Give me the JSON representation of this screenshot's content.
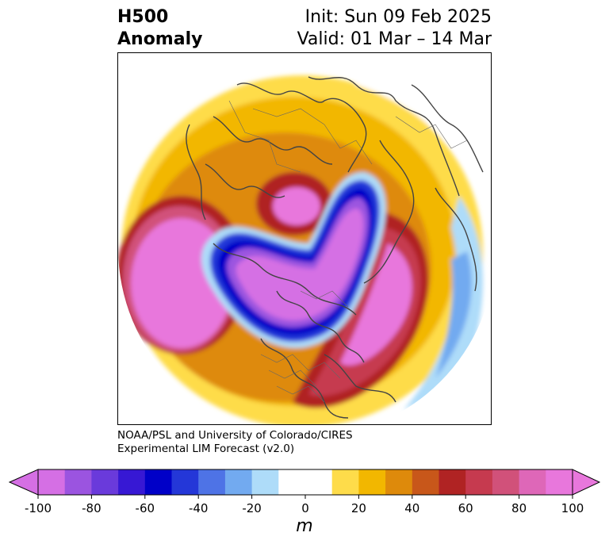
{
  "header": {
    "title_line1": "H500",
    "title_line2": "Anomaly",
    "init": "Init: Sun 09 Feb 2025",
    "valid": "Valid: 01 Mar – 14 Mar"
  },
  "credit": {
    "line1": "NOAA/PSL and University of Colorado/CIRES",
    "line2": "Experimental LIM Forecast (v2.0)"
  },
  "colorbar": {
    "unit": "m",
    "ticks": [
      "-100",
      "-80",
      "-60",
      "-40",
      "-20",
      "0",
      "20",
      "40",
      "60",
      "80",
      "100"
    ],
    "colors": [
      "#d56fe4",
      "#9b54e0",
      "#6a3adb",
      "#3718d4",
      "#0000c8",
      "#2437d8",
      "#4e73e6",
      "#72aaf0",
      "#aedcf9",
      "#ffffff",
      "#ffffff",
      "#fedc4a",
      "#f2b700",
      "#de8a0b",
      "#c8571a",
      "#b02323",
      "#c63a4f",
      "#d1517a",
      "#de67b8",
      "#e877dc"
    ],
    "under_color": "#d56fe4",
    "over_color": "#e877dc"
  },
  "map": {
    "colors": {
      "yellow": "#fedc4a",
      "gold": "#f2b700",
      "orange": "#de8a0b",
      "darkorange": "#c8571a",
      "red": "#b02323",
      "crimson": "#c63a4f",
      "rose": "#d1517a",
      "pink": "#de67b8",
      "magenta": "#e877dc",
      "violet": "#d56fe4",
      "purple": "#9b54e0",
      "indigo": "#6a3adb",
      "navy": "#0000c8",
      "blue": "#2437d8",
      "midblue": "#4e73e6",
      "skyblue": "#72aaf0",
      "lightblue": "#aedcf9",
      "coast": "#444444"
    }
  }
}
